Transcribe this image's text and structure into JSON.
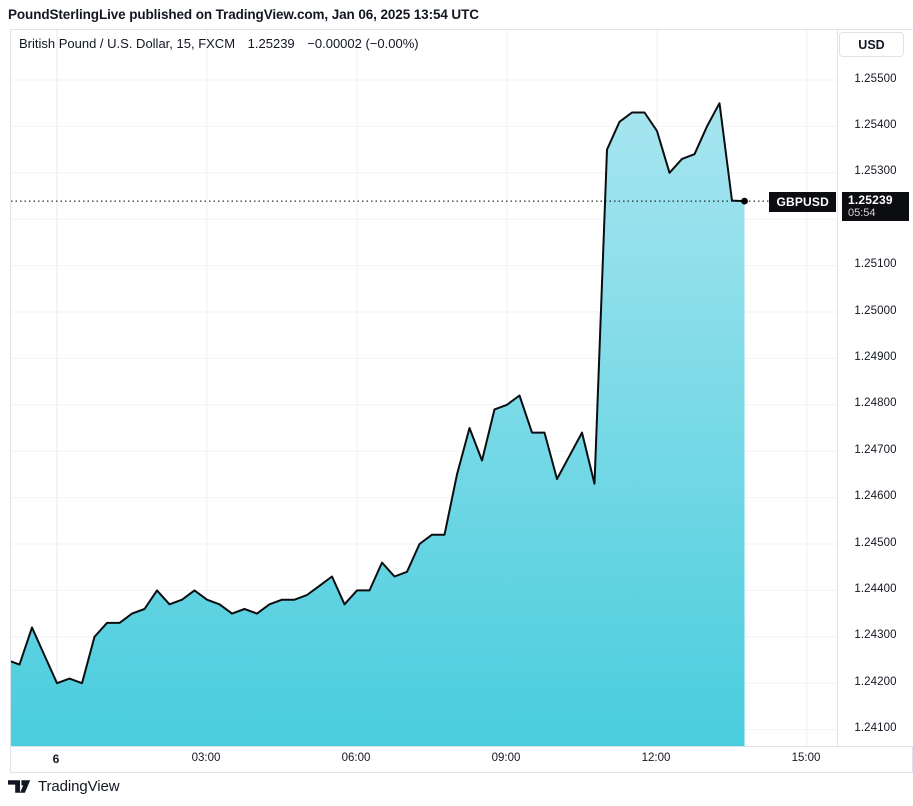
{
  "header": {
    "attribution": "PoundSterlingLive published on TradingView.com, Jan 06, 2025 13:54 UTC"
  },
  "legend": {
    "title": "British Pound / U.S. Dollar, 15, FXCM",
    "price": "1.25239",
    "change": "−0.00002 (−0.00%)"
  },
  "currency_button": {
    "label": "USD"
  },
  "price_label": {
    "symbol": "GBPUSD",
    "price": "1.25239",
    "countdown": "05:54"
  },
  "footer": {
    "brand": "TradingView",
    "logo_icon": "tradingview-logo"
  },
  "colors": {
    "line": "#0b0d10",
    "area_top": "#b2e8f2",
    "area_bottom": "#49cddd",
    "grid": "#f0f2f8",
    "day_grid": "#e7e9f0",
    "border": "#e0e3eb",
    "text": "#131722",
    "badge_bg": "#0c0d10",
    "badge_text": "#ffffff"
  },
  "chart_data": {
    "type": "area",
    "title": "British Pound / U.S. Dollar, 15, FXCM",
    "symbol": "GBPUSD",
    "exchange": "FXCM",
    "interval_minutes": 15,
    "last_price": 1.25239,
    "change": -2e-05,
    "change_pct": "−0.00%",
    "x": [
      "23:00",
      "23:15",
      "23:30",
      "23:45",
      "00:00",
      "00:15",
      "00:30",
      "00:45",
      "01:00",
      "01:15",
      "01:30",
      "01:45",
      "02:00",
      "02:15",
      "02:30",
      "02:45",
      "03:00",
      "03:15",
      "03:30",
      "03:45",
      "04:00",
      "04:15",
      "04:30",
      "04:45",
      "05:00",
      "05:15",
      "05:30",
      "05:45",
      "06:00",
      "06:15",
      "06:30",
      "06:45",
      "07:00",
      "07:15",
      "07:30",
      "07:45",
      "08:00",
      "08:15",
      "08:30",
      "08:45",
      "09:00",
      "09:15",
      "09:30",
      "09:45",
      "10:00",
      "10:15",
      "10:30",
      "10:45",
      "11:00",
      "11:15",
      "11:30",
      "11:45",
      "12:00",
      "12:15",
      "12:30",
      "12:45",
      "13:00",
      "13:15",
      "13:30",
      "13:45"
    ],
    "values": [
      1.2425,
      1.2424,
      1.2432,
      1.2426,
      1.242,
      1.2421,
      1.242,
      1.243,
      1.2433,
      1.2433,
      1.2435,
      1.2436,
      1.244,
      1.2437,
      1.2438,
      1.244,
      1.2438,
      1.2437,
      1.2435,
      1.2436,
      1.2435,
      1.2437,
      1.2438,
      1.2438,
      1.2439,
      1.2441,
      1.2443,
      1.2437,
      1.244,
      1.244,
      1.2446,
      1.2443,
      1.2444,
      1.245,
      1.2452,
      1.2452,
      1.2465,
      1.2475,
      1.2468,
      1.2479,
      1.248,
      1.2482,
      1.2474,
      1.2474,
      1.2464,
      1.2469,
      1.2474,
      1.2463,
      1.2535,
      1.2541,
      1.2543,
      1.2543,
      1.2539,
      1.253,
      1.2533,
      1.2534,
      1.254,
      1.2545,
      1.2524,
      1.25239
    ],
    "start_hour_offset": -1,
    "step_hours": 0.25,
    "ylim": [
      1.241,
      1.255
    ],
    "y_tick_step": 0.001,
    "y_ticks": [
      "1.25500",
      "1.25400",
      "1.25300",
      "1.25100",
      "1.25000",
      "1.24900",
      "1.24800",
      "1.24700",
      "1.24600",
      "1.24500",
      "1.24400",
      "1.24300",
      "1.24200",
      "1.24100"
    ],
    "x_ticks": [
      {
        "label": "6",
        "hour": 0,
        "bold": true
      },
      {
        "label": "03:00",
        "hour": 3,
        "bold": false
      },
      {
        "label": "06:00",
        "hour": 6,
        "bold": false
      },
      {
        "label": "09:00",
        "hour": 9,
        "bold": false
      },
      {
        "label": "12:00",
        "hour": 12,
        "bold": false
      },
      {
        "label": "15:00",
        "hour": 15,
        "bold": false
      }
    ],
    "grid": true,
    "legend_position": "top-left"
  }
}
